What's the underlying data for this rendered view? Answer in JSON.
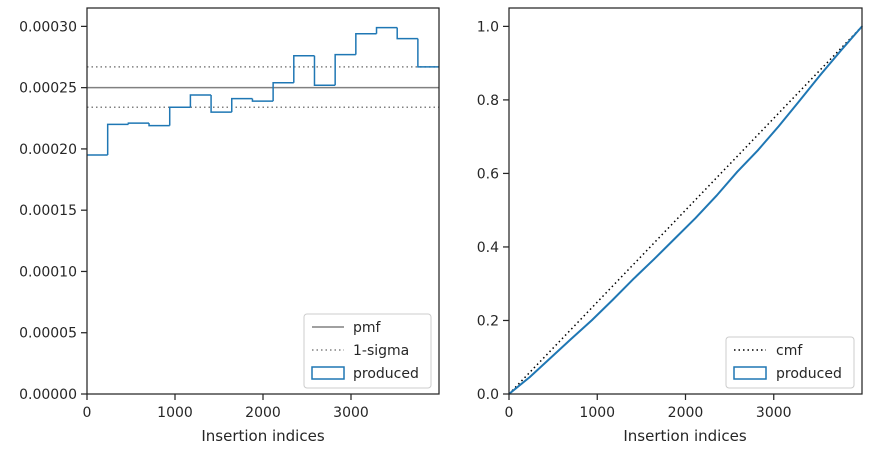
{
  "chart_data": [
    {
      "type": "step",
      "xlabel": "Insertion indices",
      "ylabel": "",
      "xlim": [
        0,
        4000
      ],
      "ylim": [
        0,
        0.000315
      ],
      "xticks": [
        0,
        1000,
        2000,
        3000
      ],
      "xtick_labels": [
        "0",
        "1000",
        "2000",
        "3000"
      ],
      "yticks": [
        0,
        5e-05,
        0.0001,
        0.00015,
        0.0002,
        0.00025,
        0.0003
      ],
      "ytick_labels": [
        "0.00000",
        "0.00005",
        "0.00010",
        "0.00015",
        "0.00020",
        "0.00025",
        "0.00030"
      ],
      "pmf": 0.00025,
      "sigma_band": [
        0.000234,
        0.000267
      ],
      "bin_edges": [
        0,
        235,
        470,
        705,
        940,
        1175,
        1410,
        1645,
        1880,
        2115,
        2350,
        2585,
        2820,
        3055,
        3290,
        3525,
        3760,
        4000
      ],
      "bin_values": [
        0.000195,
        0.00022,
        0.000221,
        0.000219,
        0.000234,
        0.000244,
        0.00023,
        0.000241,
        0.000239,
        0.000254,
        0.000276,
        0.000252,
        0.000277,
        0.000294,
        0.000299,
        0.00029,
        0.000267
      ],
      "legend": {
        "position": "lower-right",
        "items": [
          {
            "label": "pmf",
            "style": "solid",
            "color": "#808080"
          },
          {
            "label": "1-sigma",
            "style": "dotted",
            "color": "#808080"
          },
          {
            "label": "produced",
            "style": "box",
            "color": "#1f77b4"
          }
        ]
      }
    },
    {
      "type": "line",
      "xlabel": "Insertion indices",
      "ylabel": "",
      "xlim": [
        0,
        4000
      ],
      "ylim": [
        0,
        1.05
      ],
      "xticks": [
        0,
        1000,
        2000,
        3000
      ],
      "xtick_labels": [
        "0",
        "1000",
        "2000",
        "3000"
      ],
      "yticks": [
        0,
        0.2,
        0.4,
        0.6,
        0.8,
        1.0
      ],
      "ytick_labels": [
        "0.0",
        "0.2",
        "0.4",
        "0.6",
        "0.8",
        "1.0"
      ],
      "cmf": {
        "x": [
          0,
          4000
        ],
        "y": [
          0,
          1.0
        ]
      },
      "produced": {
        "x": [
          0,
          235,
          470,
          705,
          940,
          1175,
          1410,
          1645,
          1880,
          2115,
          2350,
          2585,
          2820,
          3055,
          3290,
          3525,
          3760,
          4000
        ],
        "y": [
          0,
          0.046,
          0.098,
          0.15,
          0.201,
          0.256,
          0.313,
          0.367,
          0.423,
          0.479,
          0.539,
          0.604,
          0.663,
          0.728,
          0.797,
          0.867,
          0.934,
          1.0
        ]
      },
      "legend": {
        "position": "lower-right",
        "items": [
          {
            "label": "cmf",
            "style": "dotted",
            "color": "#000000"
          },
          {
            "label": "produced",
            "style": "box",
            "color": "#1f77b4"
          }
        ]
      }
    }
  ]
}
